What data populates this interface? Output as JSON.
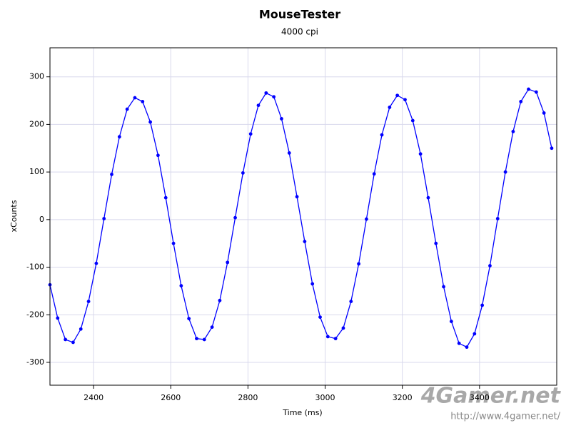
{
  "chart_data": {
    "type": "line",
    "title": "MouseTester",
    "subtitle": "4000 cpi",
    "x_label": "Time (ms)",
    "y_label": "xCounts",
    "x": [
      2287,
      2307,
      2327,
      2347,
      2367,
      2387,
      2407,
      2427,
      2447,
      2467,
      2487,
      2507,
      2527,
      2547,
      2567,
      2587,
      2607,
      2627,
      2647,
      2667,
      2687,
      2707,
      2727,
      2747,
      2767,
      2787,
      2807,
      2827,
      2847,
      2867,
      2887,
      2907,
      2927,
      2947,
      2967,
      2987,
      3007,
      3027,
      3047,
      3067,
      3087,
      3107,
      3127,
      3147,
      3167,
      3187,
      3207,
      3227,
      3247,
      3267,
      3287,
      3307,
      3327,
      3347,
      3367,
      3387,
      3407,
      3427,
      3447,
      3467,
      3487,
      3507,
      3527,
      3547,
      3567,
      3587
    ],
    "values": [
      -137,
      -207,
      -252,
      -258,
      -230,
      -172,
      -92,
      2,
      95,
      174,
      232,
      256,
      248,
      205,
      135,
      46,
      -50,
      -139,
      -208,
      -250,
      -252,
      -226,
      -170,
      -90,
      4,
      98,
      180,
      240,
      266,
      258,
      212,
      140,
      48,
      -46,
      -135,
      -205,
      -246,
      -250,
      -228,
      -172,
      -93,
      1,
      96,
      178,
      236,
      261,
      252,
      208,
      138,
      46,
      -50,
      -141,
      -214,
      -260,
      -268,
      -240,
      -180,
      -97,
      2,
      100,
      185,
      248,
      274,
      268,
      224,
      150
    ],
    "color": "#0000ff",
    "xlim": [
      2287,
      3600
    ],
    "xticks": [
      2400,
      2600,
      2800,
      3000,
      3200,
      3400
    ],
    "ylim": [
      -348,
      361
    ],
    "yticks": [
      -300,
      -200,
      -100,
      0,
      100,
      200,
      300
    ],
    "grid": true,
    "watermark": "4Gamer.net",
    "watermark_url": "http://www.4gamer.net/"
  }
}
